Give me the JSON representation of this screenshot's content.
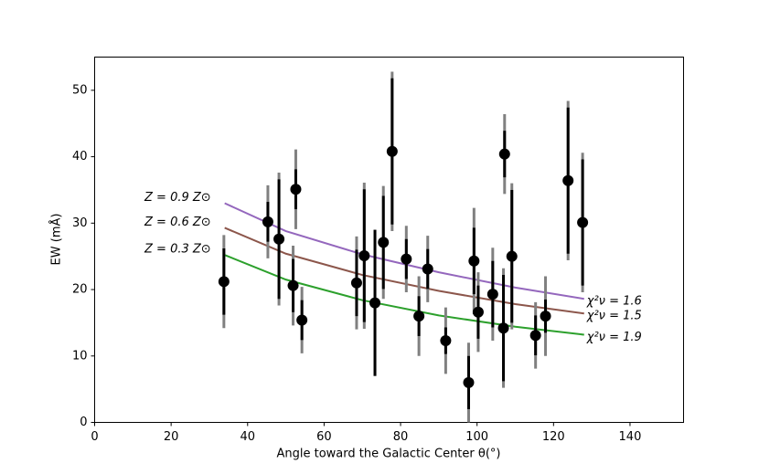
{
  "chart_data": {
    "type": "scatter",
    "xlabel": "Angle toward the Galactic Center θ(°)",
    "ylabel": "EW (mÅ)",
    "xlim": [
      0,
      154
    ],
    "ylim": [
      0,
      55
    ],
    "xticks": [
      0,
      20,
      40,
      60,
      80,
      100,
      120,
      140
    ],
    "yticks": [
      0,
      10,
      20,
      30,
      40,
      50
    ],
    "color": "#000000",
    "x": [
      33.8,
      45.3,
      48.2,
      51.9,
      52.6,
      54.2,
      68.5,
      70.5,
      73.3,
      75.5,
      77.8,
      81.5,
      84.8,
      87.1,
      91.8,
      97.8,
      99.2,
      100.3,
      104.1,
      106.9,
      107.2,
      109.1,
      115.3,
      117.9,
      123.8,
      127.6
    ],
    "values": [
      21.2,
      30.2,
      27.6,
      20.6,
      35.1,
      15.4,
      21.0,
      25.1,
      18.0,
      27.1,
      40.8,
      24.6,
      16.0,
      23.1,
      12.3,
      6.0,
      24.3,
      16.6,
      19.3,
      14.2,
      40.4,
      25.0,
      13.1,
      16.0,
      36.4,
      30.1
    ],
    "errors": [
      5,
      3,
      9,
      4,
      3,
      3,
      5,
      10,
      11,
      7,
      11,
      3,
      3,
      3,
      2,
      4,
      5,
      4,
      5,
      8,
      3.5,
      10,
      3,
      2.5,
      11,
      9.5
    ],
    "errors_outer": [
      7,
      5.5,
      10,
      6,
      6,
      5,
      7,
      11,
      11,
      8.5,
      12,
      5,
      6,
      5,
      5,
      6,
      8,
      6,
      7,
      9,
      6,
      11,
      5,
      6,
      12,
      10.5
    ],
    "series": [
      {
        "name": "Z = 0.9 Z⊙",
        "color": "#9467bd",
        "annotation": "χ²ν = 1.6",
        "x": [
          34,
          50,
          70,
          90,
          110,
          128
        ],
        "values": [
          33.0,
          28.8,
          25.3,
          22.6,
          20.3,
          18.6
        ]
      },
      {
        "name": "Z = 0.6 Z⊙",
        "color": "#8c564b",
        "annotation": "χ²ν = 1.5",
        "x": [
          34,
          50,
          70,
          90,
          110,
          128
        ],
        "values": [
          29.3,
          25.4,
          22.2,
          19.8,
          17.8,
          16.4
        ]
      },
      {
        "name": "Z = 0.3 Z⊙",
        "color": "#2ca02c",
        "annotation": "χ²ν = 1.9",
        "x": [
          34,
          50,
          70,
          90,
          110,
          128
        ],
        "values": [
          25.2,
          21.5,
          18.4,
          16.1,
          14.4,
          13.2
        ]
      }
    ]
  }
}
